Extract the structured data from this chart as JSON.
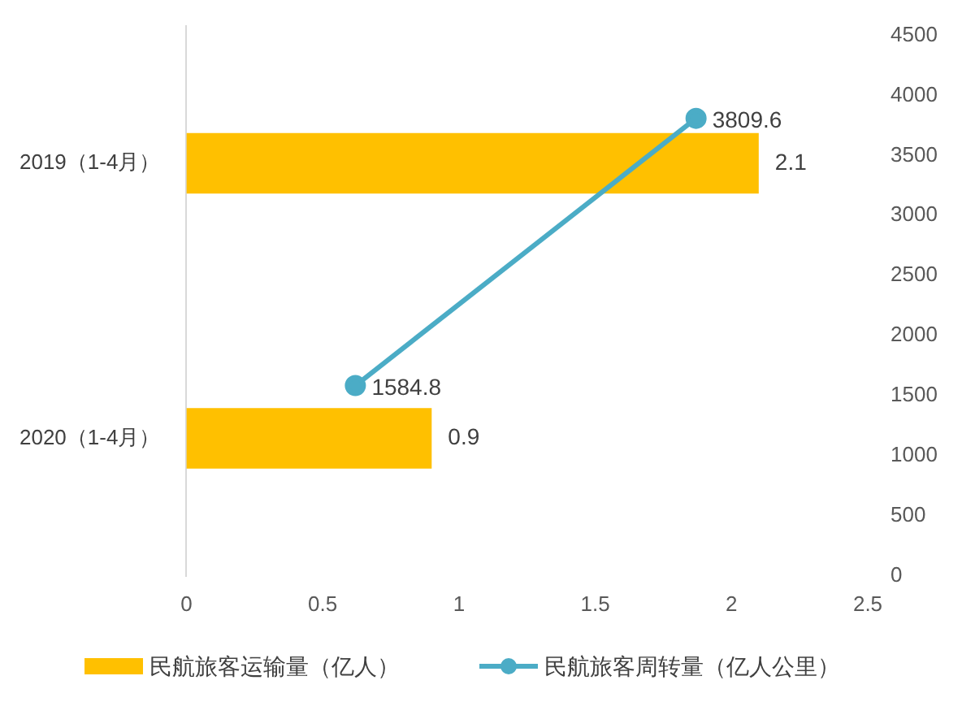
{
  "chart_data": [
    {
      "type": "bar",
      "orientation": "horizontal",
      "categories": [
        "2019（1-4月）",
        "2020（1-4月）"
      ],
      "series": [
        {
          "name": "民航旅客运输量（亿人）",
          "color": "#ffc000",
          "values": [
            2.1,
            0.9
          ]
        }
      ],
      "xlim": [
        0,
        2.5
      ],
      "xticks": [
        0,
        0.5,
        1,
        1.5,
        2,
        2.5
      ],
      "data_labels": true,
      "legend": "bottom",
      "grid": false
    },
    {
      "type": "line",
      "series": [
        {
          "name": "民航旅客周转量（亿人公里）",
          "color": "#4bacc6",
          "x": [
            1.87,
            0.62
          ],
          "values": [
            3809.6,
            1584.8
          ]
        }
      ],
      "xlim": [
        0,
        2.5
      ],
      "xticks": [
        0,
        0.5,
        1,
        1.5,
        2,
        2.5
      ],
      "ylim": [
        0,
        4500
      ],
      "yticks": [
        0,
        500,
        1000,
        1500,
        2000,
        2500,
        3000,
        3500,
        4000,
        4500
      ],
      "tick_labels": "y",
      "data_labels": true,
      "legend": "bottom",
      "grid": false,
      "marker": "circle"
    }
  ]
}
